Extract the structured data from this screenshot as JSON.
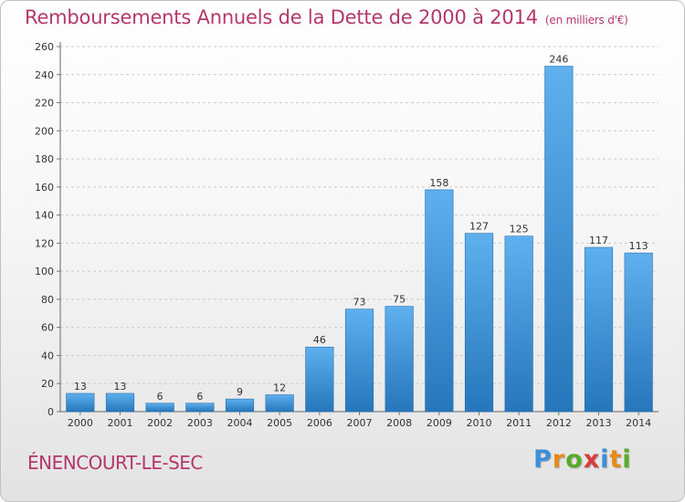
{
  "chart_data": {
    "type": "bar",
    "title": "Remboursements Annuels de la Dette de 2000 à 2014",
    "subtitle": "(en milliers d'€)",
    "categories": [
      "2000",
      "2001",
      "2002",
      "2003",
      "2004",
      "2005",
      "2006",
      "2007",
      "2008",
      "2009",
      "2010",
      "2011",
      "2012",
      "2013",
      "2014"
    ],
    "values": [
      13,
      13,
      6,
      6,
      9,
      12,
      46,
      73,
      75,
      158,
      127,
      125,
      246,
      117,
      113
    ],
    "ylim": [
      0,
      260
    ],
    "yticks": [
      0,
      20,
      40,
      60,
      80,
      100,
      120,
      140,
      160,
      180,
      200,
      220,
      240,
      260
    ],
    "xlabel": "",
    "ylabel": "",
    "grid": true,
    "bar_color": "#3d90d6"
  },
  "footer": {
    "commune": "ÉNENCOURT-LE-SEC",
    "logo_letters": [
      "P",
      "r",
      "o",
      "x",
      "i",
      "t",
      "i"
    ],
    "logo_colors": [
      "#3d8fd8",
      "#e68a1a",
      "#5aaa2a",
      "#d93a3a",
      "#3d8fd8",
      "#e68a1a",
      "#5aaa2a"
    ]
  }
}
